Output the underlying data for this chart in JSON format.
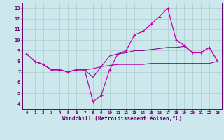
{
  "x": [
    0,
    1,
    2,
    3,
    4,
    5,
    6,
    7,
    8,
    9,
    10,
    11,
    12,
    13,
    14,
    15,
    16,
    17,
    18,
    19,
    20,
    21,
    22,
    23
  ],
  "line_main": [
    8.7,
    8.0,
    7.7,
    7.2,
    7.2,
    7.0,
    7.2,
    7.2,
    4.2,
    4.8,
    7.2,
    8.7,
    9.0,
    10.5,
    10.8,
    11.5,
    12.2,
    13.0,
    10.0,
    9.5,
    8.8,
    8.8,
    9.3,
    8.0
  ],
  "line_mid": [
    8.7,
    8.0,
    7.7,
    7.2,
    7.2,
    7.0,
    7.2,
    7.2,
    6.5,
    7.5,
    8.5,
    8.7,
    8.8,
    9.0,
    9.0,
    9.1,
    9.2,
    9.3,
    9.3,
    9.4,
    8.8,
    8.8,
    9.3,
    8.0
  ],
  "line_base": [
    8.7,
    8.0,
    7.7,
    7.2,
    7.2,
    7.0,
    7.2,
    7.2,
    7.3,
    7.5,
    7.6,
    7.7,
    7.7,
    7.7,
    7.7,
    7.8,
    7.8,
    7.8,
    7.8,
    7.8,
    7.8,
    7.8,
    7.8,
    8.0
  ],
  "bg_color": "#cce8ec",
  "grid_color": "#aacccc",
  "line_main_color": "#cc00aa",
  "line_mid_color": "#880099",
  "line_base_color": "#aa00aa",
  "xlabel": "Windchill (Refroidissement éolien,°C)",
  "yticks": [
    4,
    5,
    6,
    7,
    8,
    9,
    10,
    11,
    12,
    13
  ],
  "xlim": [
    -0.5,
    23.5
  ],
  "ylim": [
    3.5,
    13.5
  ]
}
